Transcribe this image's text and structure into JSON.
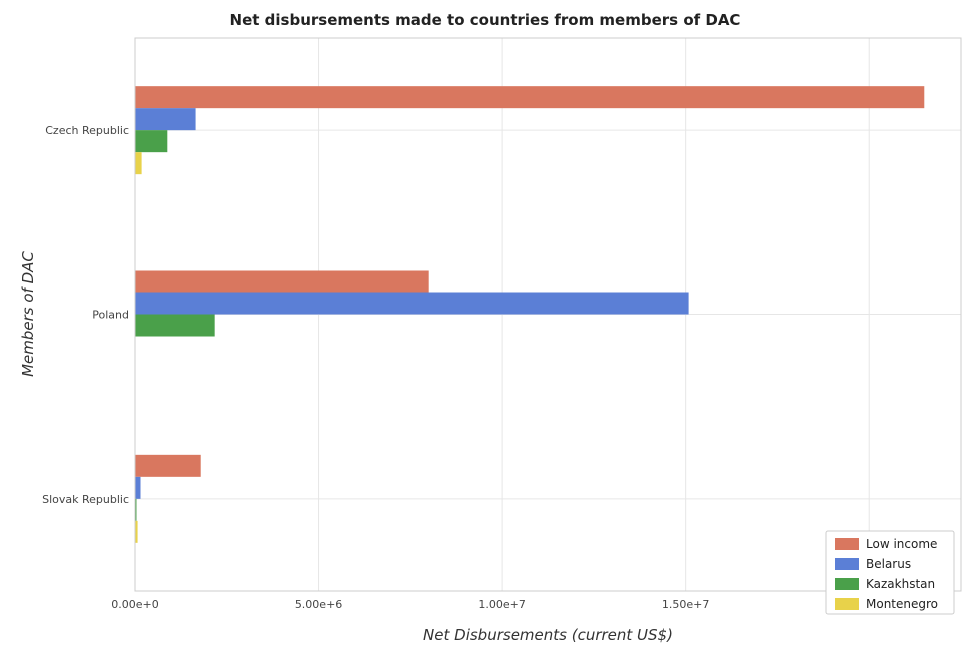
{
  "chart_data": {
    "type": "bar",
    "orientation": "horizontal",
    "title": "Net disbursements made to countries from members of DAC",
    "xlabel": "Net Disbursements (current US$)",
    "ylabel": "Members of DAC",
    "categories": [
      "Czech Republic",
      "Poland",
      "Slovak Republic"
    ],
    "xlim": [
      0,
      22500000
    ],
    "x_ticks": [
      {
        "value": 0,
        "label": "0.00e+0"
      },
      {
        "value": 5000000,
        "label": "5.00e+6"
      },
      {
        "value": 10000000,
        "label": "1.00e+7"
      },
      {
        "value": 15000000,
        "label": "1.50e+7"
      },
      {
        "value": 20000000,
        "label": "2.00e+7"
      }
    ],
    "grid": true,
    "legend_position": "bottom-right",
    "series": [
      {
        "name": "Low income",
        "color": "#d9775f",
        "values": [
          21500000,
          8000000,
          1790000
        ]
      },
      {
        "name": "Belarus",
        "color": "#5b7fd6",
        "values": [
          1650000,
          15080000,
          150000
        ]
      },
      {
        "name": "Kazakhstan",
        "color": "#4aa04a",
        "values": [
          880000,
          2170000,
          40000
        ]
      },
      {
        "name": "Montenegro",
        "color": "#e8d24a",
        "values": [
          180000,
          0,
          70000
        ]
      }
    ]
  }
}
